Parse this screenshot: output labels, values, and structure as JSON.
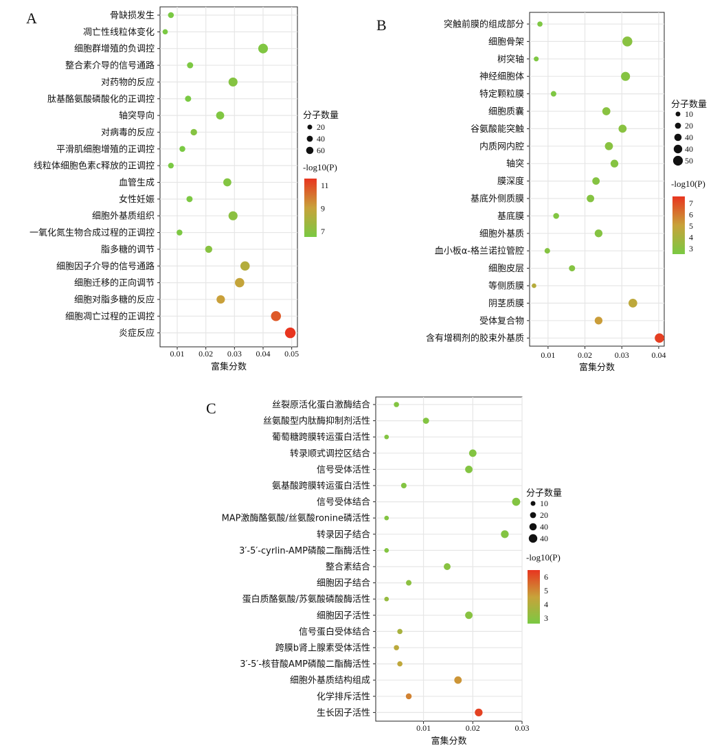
{
  "chart_data": [
    {
      "panel": "A",
      "type": "scatter",
      "xlabel": "富集分数",
      "xticks": [
        "0.01",
        "0.02",
        "0.03",
        "0.04",
        "0.05"
      ],
      "xlim": [
        0.004,
        0.052
      ],
      "categories": [
        "骨缺损发生",
        "凋亡性线粒体变化",
        "细胞群增殖的负调控",
        "整合素介导的信号通路",
        "对药物的反应",
        "肽基酪氨酸磷酸化的正调控",
        "轴突导向",
        "对病毒的反应",
        "平滑肌细胞增殖的正调控",
        "线粒体细胞色素c释放的正调控",
        "血管生成",
        "女性妊娠",
        "细胞外基质组织",
        "一氧化氮生物合成过程的正调控",
        "脂多糖的调节",
        "细胞因子介导的信号通路",
        "细胞迁移的正向调节",
        "细胞对脂多糖的反应",
        "细胞凋亡过程的正调控",
        "炎症反应"
      ],
      "x": [
        0.0078,
        0.0058,
        0.04,
        0.0145,
        0.0295,
        0.0138,
        0.025,
        0.0158,
        0.0118,
        0.0078,
        0.0275,
        0.0143,
        0.0295,
        0.0108,
        0.021,
        0.0337,
        0.0318,
        0.0252,
        0.0445,
        0.0495
      ],
      "size": [
        18,
        14,
        42,
        20,
        38,
        20,
        32,
        22,
        18,
        17,
        32,
        20,
        38,
        18,
        26,
        40,
        40,
        34,
        44,
        48
      ],
      "neglog10p": [
        6.0,
        6.0,
        6.2,
        6.1,
        6.4,
        6.0,
        6.2,
        6.4,
        6.0,
        6.0,
        6.3,
        6.1,
        6.6,
        6.1,
        6.5,
        8.0,
        8.6,
        8.8,
        10.6,
        11.5
      ],
      "legend_size_title": "分子数量",
      "legend_sizes": [
        "20",
        "40",
        "60"
      ],
      "legend_color_title": "-log10(P)",
      "legend_color_ticks": [
        "11",
        "9",
        "7"
      ],
      "color_range": [
        6,
        11.5
      ]
    },
    {
      "panel": "B",
      "type": "scatter",
      "xlabel": "富集分数",
      "xticks": [
        "0.01",
        "0.02",
        "0.03",
        "0.04"
      ],
      "xlim": [
        0.005,
        0.0415
      ],
      "categories": [
        "突触前膜的组成部分",
        "细胞骨架",
        "树突轴",
        "神经细胞体",
        "特定颗粒膜",
        "细胞质囊",
        "谷氨酸能突触",
        "内质网内腔",
        "轴突",
        "膜深度",
        "基底外侧质膜",
        "基底膜",
        "细胞外基质",
        "血小板α-格兰诺拉管腔",
        "细胞皮层",
        "等侧质膜",
        "阴茎质膜",
        "受体复合物",
        "含有增稠剂的胶束外基质"
      ],
      "x": [
        0.0078,
        0.0315,
        0.0068,
        0.031,
        0.0115,
        0.0258,
        0.0302,
        0.0265,
        0.028,
        0.023,
        0.0215,
        0.0122,
        0.0237,
        0.0098,
        0.0165,
        0.0062,
        0.033,
        0.0237,
        0.0402
      ],
      "size": [
        14,
        44,
        12,
        38,
        16,
        32,
        32,
        32,
        30,
        28,
        28,
        18,
        30,
        16,
        20,
        10,
        36,
        30,
        40
      ],
      "neglog10p": [
        3.1,
        3.4,
        3.1,
        3.3,
        3.1,
        3.4,
        3.4,
        3.4,
        3.3,
        3.3,
        3.3,
        3.2,
        3.3,
        3.3,
        3.3,
        4.6,
        4.8,
        5.2,
        7.0
      ],
      "legend_size_title": "分子数量",
      "legend_sizes": [
        "10",
        "20",
        "40",
        "40",
        "50"
      ],
      "legend_color_title": "-log10(P)",
      "legend_color_ticks": [
        "7",
        "6",
        "5",
        "4",
        "3"
      ],
      "color_range": [
        3,
        7.2
      ]
    },
    {
      "panel": "C",
      "type": "scatter",
      "xlabel": "富集分数",
      "xticks": [
        "0.01",
        "0.02",
        "0.03"
      ],
      "xlim": [
        0.0003,
        0.03
      ],
      "categories": [
        "丝裂原活化蛋白激酶结合",
        "丝氨酸型内肽酶抑制剂活性",
        "葡萄糖跨膜转运蛋白活性",
        "转录顺式调控区结合",
        "信号受体活性",
        "氨基酸跨膜转运蛋白活性",
        "信号受体结合",
        "MAP激酶酪氨酸/丝氨酸ronine磷活性",
        "转录因子结合",
        "3′-5′-cyrlin-AMP磷酸二酯酶活性",
        "整合素结合",
        "细胞因子结合",
        "蛋白质酪氨酸/苏氨酸磷酸酶活性",
        "细胞因子活性",
        "信号蛋白受体结合",
        "跨膜b肾上腺素受体活性",
        "3′-5′-核苷酸AMP磷酸二酯酶活性",
        "细胞外基质结构组成",
        "化学排斥活性",
        "生长因子活性"
      ],
      "x": [
        0.0045,
        0.0105,
        0.0025,
        0.02,
        0.0192,
        0.006,
        0.0288,
        0.0025,
        0.0265,
        0.0025,
        0.0148,
        0.007,
        0.0025,
        0.0192,
        0.0052,
        0.0045,
        0.0052,
        0.017,
        0.007,
        0.0212
      ],
      "size": [
        14,
        20,
        10,
        28,
        28,
        16,
        32,
        10,
        30,
        10,
        24,
        16,
        10,
        28,
        14,
        14,
        14,
        28,
        18,
        30
      ],
      "neglog10p": [
        3.0,
        3.0,
        3.0,
        3.0,
        3.0,
        3.0,
        3.0,
        3.0,
        3.0,
        3.0,
        3.1,
        3.2,
        3.4,
        3.1,
        3.8,
        4.2,
        4.3,
        4.7,
        5.0,
        6.0
      ],
      "legend_size_title": "分子数量",
      "legend_sizes": [
        "10",
        "20",
        "40",
        "40"
      ],
      "legend_color_title": "-log10(P)",
      "legend_color_ticks": [
        "6",
        "5",
        "4",
        "3"
      ],
      "color_range": [
        2.8,
        6.2
      ]
    }
  ]
}
